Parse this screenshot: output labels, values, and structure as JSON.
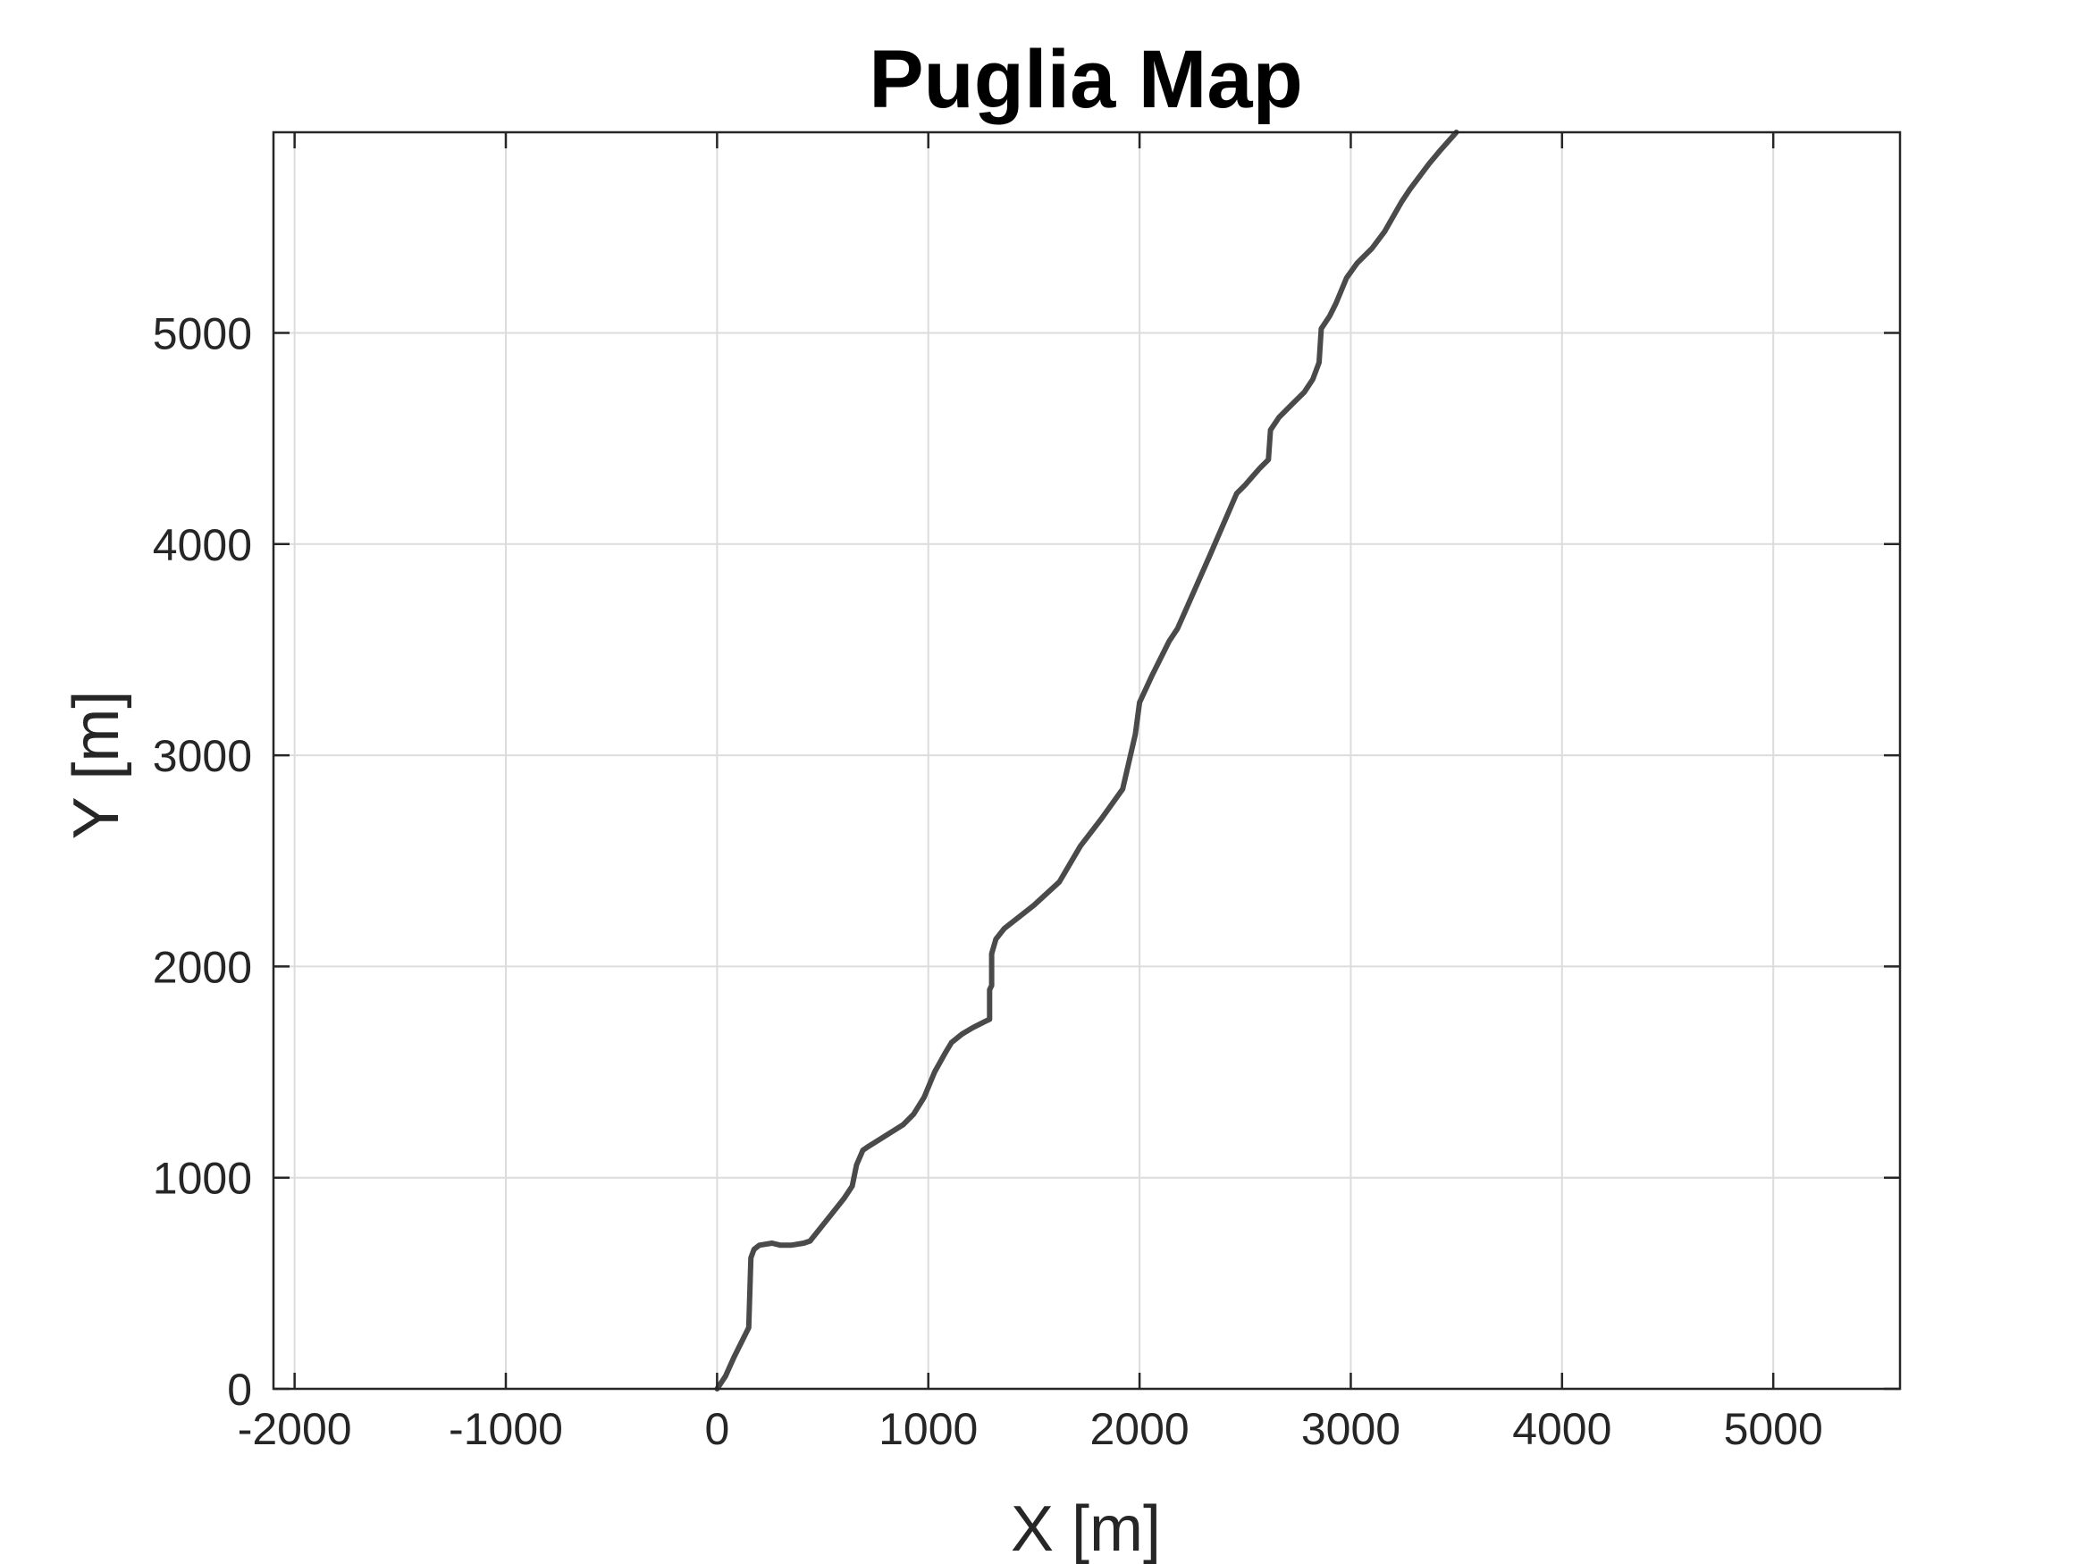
{
  "chart_data": {
    "type": "line",
    "title": "Puglia Map",
    "xlabel": "X [m]",
    "ylabel": "Y [m]",
    "xlim": [
      -2100,
      5600
    ],
    "ylim": [
      0,
      5950
    ],
    "xticks": [
      -2000,
      -1000,
      0,
      1000,
      2000,
      3000,
      4000,
      5000
    ],
    "yticks": [
      0,
      1000,
      2000,
      3000,
      4000,
      5000
    ],
    "xtick_labels": [
      "-2000",
      "-1000",
      "0",
      "1000",
      "2000",
      "3000",
      "4000",
      "5000"
    ],
    "ytick_labels": [
      "0",
      "1000",
      "2000",
      "3000",
      "4000",
      "5000"
    ],
    "grid": true,
    "legend": "none",
    "series": [
      {
        "color": "#4a4a4a",
        "x": [
          0,
          40,
          80,
          150,
          160,
          175,
          200,
          260,
          300,
          350,
          410,
          440,
          520,
          600,
          640,
          660,
          690,
          720,
          800,
          880,
          930,
          980,
          1030,
          1080,
          1110,
          1160,
          1210,
          1270,
          1290,
          1290,
          1300,
          1300,
          1320,
          1360,
          1500,
          1620,
          1720,
          1820,
          1920,
          1980,
          2000,
          2060,
          2140,
          2180,
          2330,
          2460,
          2500,
          2570,
          2610,
          2620,
          2660,
          2720,
          2780,
          2820,
          2850,
          2860,
          2900,
          2930,
          2980,
          3030,
          3100,
          3160,
          3240,
          3280,
          3370,
          3420,
          3500
        ],
        "y": [
          0,
          60,
          150,
          290,
          620,
          660,
          680,
          690,
          680,
          680,
          690,
          700,
          800,
          900,
          960,
          1060,
          1130,
          1150,
          1200,
          1250,
          1300,
          1380,
          1500,
          1590,
          1640,
          1680,
          1710,
          1740,
          1750,
          1890,
          1910,
          2060,
          2130,
          2180,
          2290,
          2400,
          2570,
          2700,
          2840,
          3100,
          3250,
          3380,
          3540,
          3600,
          3940,
          4240,
          4280,
          4360,
          4400,
          4540,
          4600,
          4660,
          4720,
          4780,
          4860,
          5020,
          5080,
          5140,
          5260,
          5330,
          5400,
          5480,
          5620,
          5680,
          5800,
          5860,
          5950
        ]
      }
    ]
  }
}
